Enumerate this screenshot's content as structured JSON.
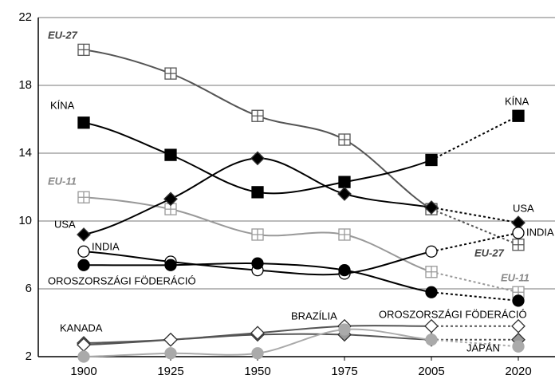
{
  "chart_data": {
    "type": "line",
    "categories": [
      "1900",
      "1925",
      "1950",
      "1975",
      "2005",
      "2020"
    ],
    "ylim": [
      2,
      22
    ],
    "yticks": [
      2,
      6,
      10,
      14,
      18,
      22
    ],
    "grid": true,
    "series": [
      {
        "name": "EU-27",
        "color": "#555555",
        "marker": "square-plus",
        "values": [
          20.1,
          18.7,
          16.2,
          14.8,
          10.7,
          8.6
        ]
      },
      {
        "name": "KÍNA",
        "color": "#000000",
        "marker": "square",
        "values": [
          15.8,
          13.9,
          11.7,
          12.3,
          13.6,
          16.2
        ]
      },
      {
        "name": "EU-11",
        "color": "#999999",
        "marker": "square-plus",
        "values": [
          11.4,
          10.7,
          9.2,
          9.2,
          7.0,
          5.8
        ]
      },
      {
        "name": "USA",
        "color": "#000000",
        "marker": "diamond",
        "values": [
          9.2,
          11.3,
          13.7,
          11.6,
          10.8,
          9.9
        ]
      },
      {
        "name": "INDIA",
        "color": "#000000",
        "marker": "open-circle",
        "values": [
          8.2,
          7.6,
          7.1,
          6.9,
          8.2,
          9.3
        ]
      },
      {
        "name": "OROSZORSZÁGI FÖDERÁCIÓ",
        "color": "#000000",
        "marker": "circle",
        "values": [
          7.4,
          7.4,
          7.5,
          7.1,
          5.8,
          5.3
        ]
      },
      {
        "name": "KANADA",
        "color": "#555555",
        "marker": "grey-diamond",
        "values": [
          2.8,
          3.0,
          3.3,
          3.3,
          3.0,
          3.0
        ]
      },
      {
        "name": "BRAZÍLIA",
        "color": "#555555",
        "marker": "open-diamond",
        "values": [
          2.7,
          3.0,
          3.4,
          3.8,
          3.8,
          3.8
        ]
      },
      {
        "name": "JAPÁN",
        "color": "#aaaaaa",
        "marker": "grey-circle",
        "values": [
          2.0,
          2.2,
          2.2,
          3.6,
          3.0,
          2.6
        ]
      }
    ]
  }
}
